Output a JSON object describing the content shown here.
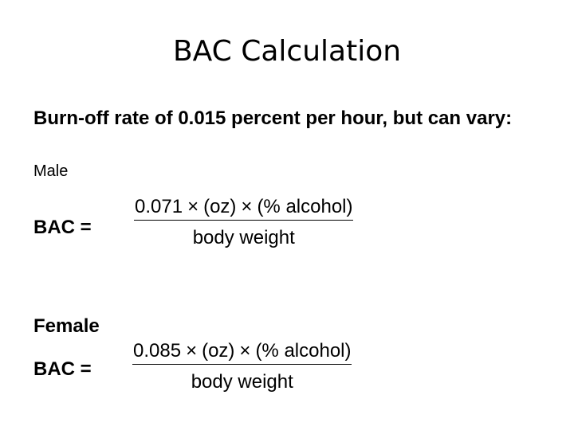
{
  "title": "BAC Calculation",
  "intro": "Burn-off rate of 0.015 percent per hour, but can vary:",
  "male": {
    "label": "Male",
    "bac_label": "BAC =",
    "numerator": {
      "coefficient": "0.071",
      "times_symbol": "×",
      "term1": "(oz)",
      "term2": "(% alcohol)"
    },
    "denominator": "body weight"
  },
  "female": {
    "label": "Female",
    "bac_label": "BAC =",
    "numerator": {
      "coefficient": "0.085",
      "times_symbol": "×",
      "term1": "(oz)",
      "term2": "(% alcohol)"
    },
    "denominator": "body weight"
  }
}
